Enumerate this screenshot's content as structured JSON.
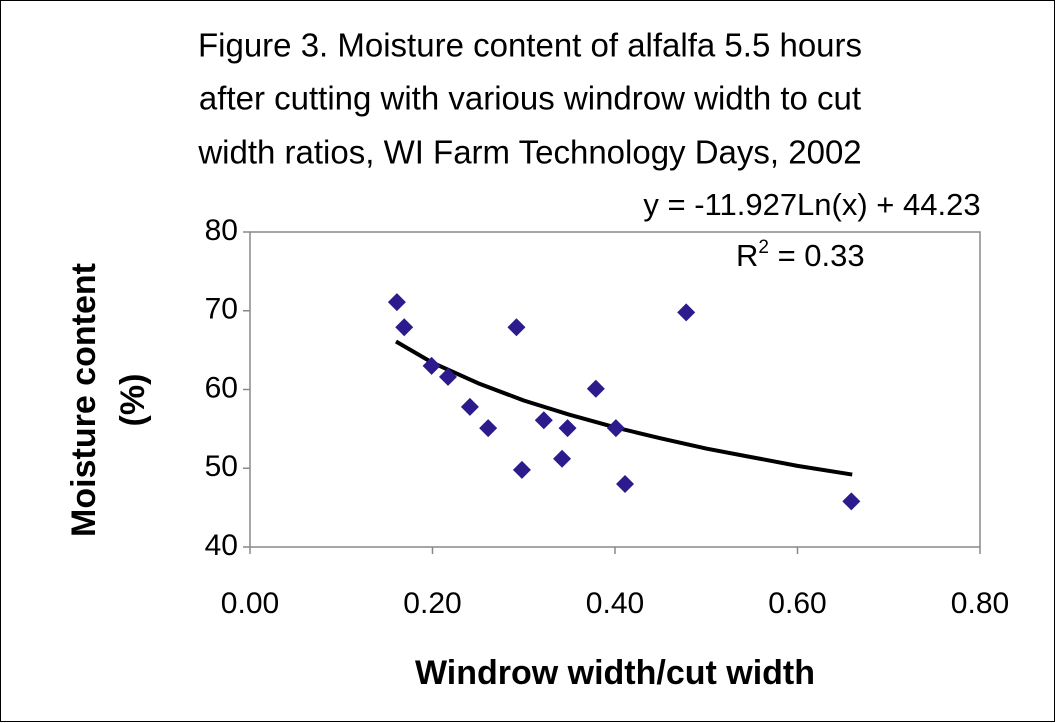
{
  "chart_data": {
    "type": "scatter",
    "title": [
      "Figure 3. Moisture content of alfalfa 5.5 hours",
      "after cutting with various windrow width to cut",
      "width ratios, WI Farm Technology Days, 2002"
    ],
    "x_label": "Windrow width/cut width",
    "y_label": [
      "Moisture content",
      "(%)"
    ],
    "xlim": [
      0,
      0.8
    ],
    "ylim": [
      40,
      80
    ],
    "xticks": [
      {
        "value": 0,
        "label": "0.00"
      },
      {
        "value": 0.2,
        "label": "0.20"
      },
      {
        "value": 0.4,
        "label": "0.40"
      },
      {
        "value": 0.6,
        "label": "0.60"
      },
      {
        "value": 0.8,
        "label": "0.80"
      }
    ],
    "yticks": [
      40,
      50,
      60,
      70,
      80
    ],
    "series": [
      {
        "color": "#2b1b8c",
        "x": [
          0.161,
          0.169,
          0.199,
          0.217,
          0.241,
          0.261,
          0.292,
          0.298,
          0.322,
          0.348,
          0.342,
          0.379,
          0.401,
          0.411,
          0.478,
          0.659
        ],
        "values": [
          71.1,
          67.9,
          63.0,
          61.6,
          57.8,
          55.1,
          67.9,
          49.8,
          56.1,
          55.1,
          51.2,
          60.1,
          55.1,
          48.0,
          69.8,
          45.8
        ]
      }
    ],
    "trendline": {
      "color": "#000000",
      "x": [
        0.16,
        0.2,
        0.25,
        0.3,
        0.35,
        0.4,
        0.45,
        0.5,
        0.55,
        0.6,
        0.66
      ],
      "values": [
        66.1,
        63.4,
        60.8,
        58.6,
        56.8,
        55.2,
        53.8,
        52.5,
        51.4,
        50.3,
        49.2
      ]
    },
    "equation": "y = -11.927Ln(x) + 44.23",
    "r_squared": {
      "base": "R",
      "superscript": "2",
      "text": " = 0.33"
    }
  }
}
